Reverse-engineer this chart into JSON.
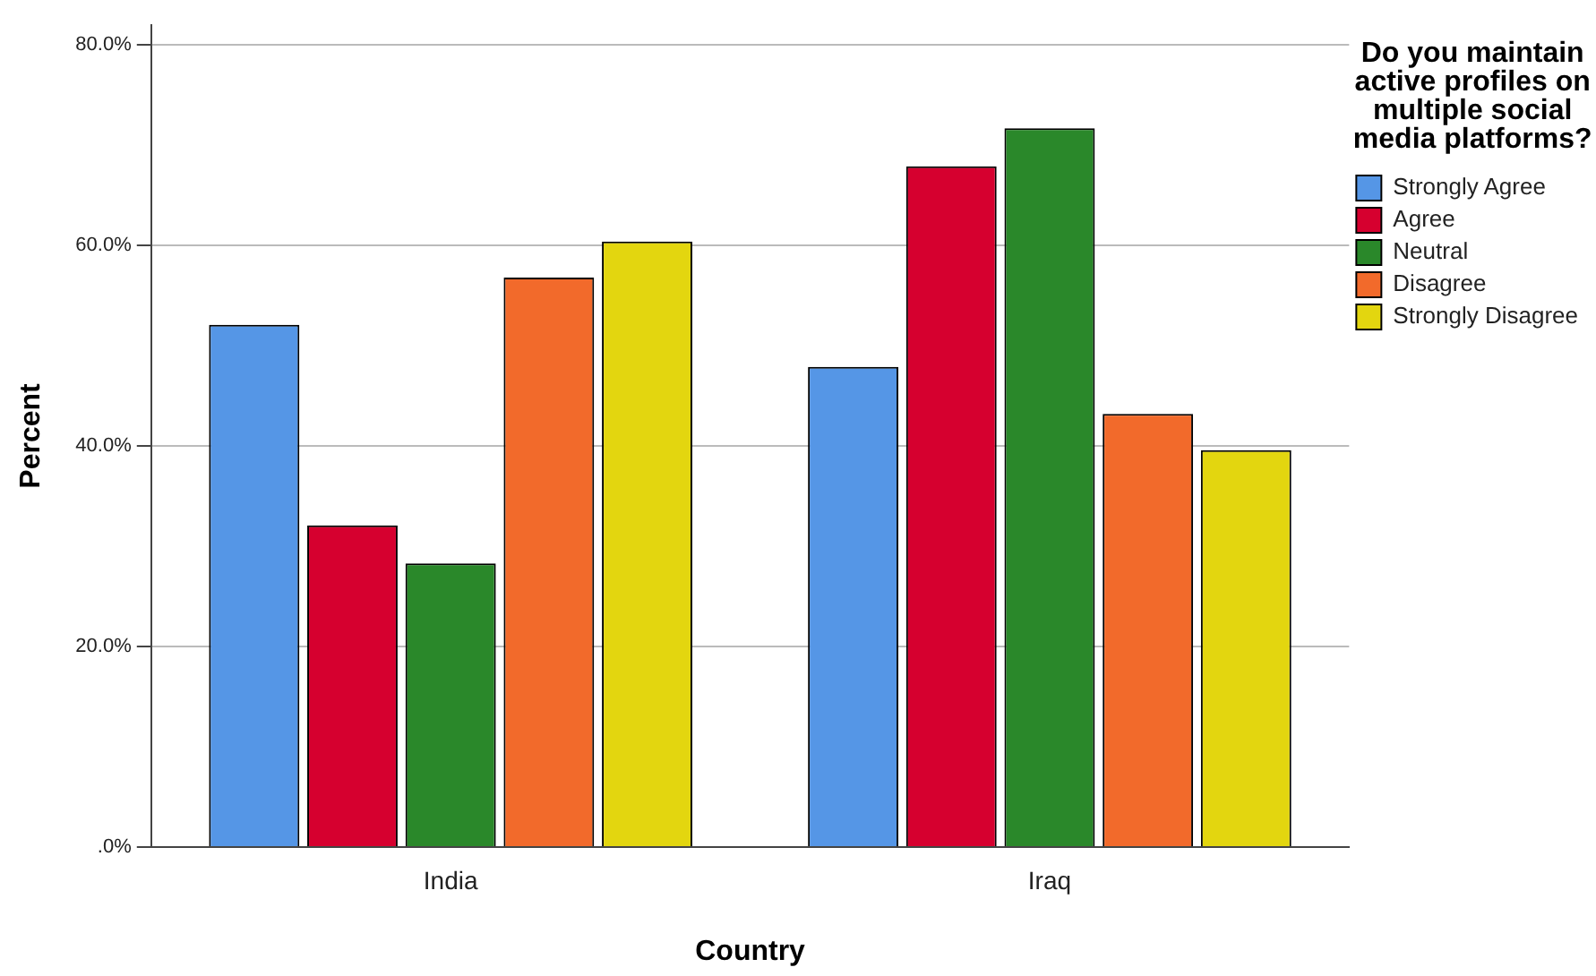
{
  "chart_data": {
    "type": "bar",
    "xlabel": "Country",
    "ylabel": "Percent",
    "legend_title": "Do you maintain active profiles on multiple social media platforms?",
    "categories": [
      "India",
      "Iraq"
    ],
    "series": [
      {
        "name": "Strongly Agree",
        "color": "#5596e6",
        "values": [
          52.1,
          47.9
        ]
      },
      {
        "name": "Agree",
        "color": "#d6002f",
        "values": [
          32.1,
          67.9
        ]
      },
      {
        "name": "Neutral",
        "color": "#2a882a",
        "values": [
          28.3,
          71.7
        ]
      },
      {
        "name": "Disagree",
        "color": "#f26a2b",
        "values": [
          56.8,
          43.2
        ]
      },
      {
        "name": "Strongly Disagree",
        "color": "#e3d60f",
        "values": [
          60.4,
          39.6
        ]
      }
    ],
    "ylim": [
      0,
      82
    ],
    "yticks": [
      {
        "value": 0,
        "label": ".0%"
      },
      {
        "value": 20,
        "label": "20.0%"
      },
      {
        "value": 40,
        "label": "40.0%"
      },
      {
        "value": 60,
        "label": "60.0%"
      },
      {
        "value": 80,
        "label": "80.0%"
      }
    ],
    "grid": "y",
    "legend": "top right"
  }
}
